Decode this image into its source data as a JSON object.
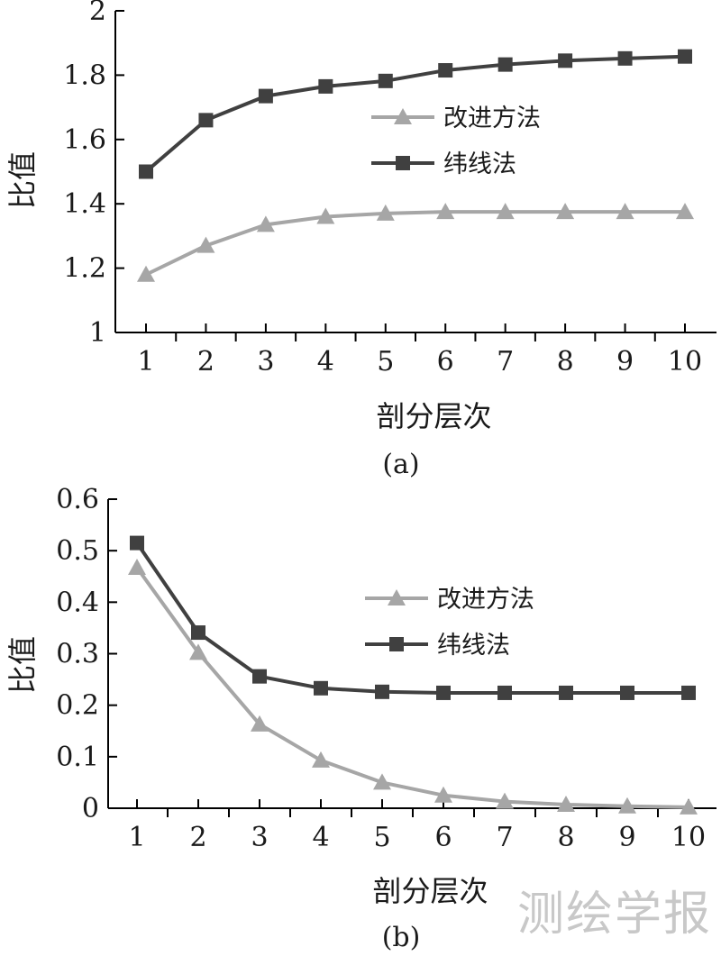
{
  "chart_data": [
    {
      "type": "line",
      "panel_label": "(a)",
      "xlabel": "剖分层次",
      "ylabel": "比值",
      "x": [
        1,
        2,
        3,
        4,
        5,
        6,
        7,
        8,
        9,
        10
      ],
      "ylim": [
        1,
        2
      ],
      "yticks": [
        1,
        1.2,
        1.4,
        1.6,
        1.8,
        2
      ],
      "ytick_labels": [
        "1",
        "1.2",
        "1.4",
        "1.6",
        "1.8",
        "2"
      ],
      "xtick_labels": [
        "1",
        "2",
        "3",
        "4",
        "5",
        "6",
        "7",
        "8",
        "9",
        "10"
      ],
      "grid": false,
      "legend_position": "right",
      "series": [
        {
          "name": "改进方法",
          "marker": "triangle",
          "color": "#a6a6a6",
          "values": [
            1.18,
            1.27,
            1.335,
            1.36,
            1.37,
            1.375,
            1.375,
            1.375,
            1.375,
            1.375
          ]
        },
        {
          "name": "纬线法",
          "marker": "square",
          "color": "#404040",
          "values": [
            1.5,
            1.66,
            1.735,
            1.765,
            1.782,
            1.815,
            1.833,
            1.845,
            1.852,
            1.858
          ]
        }
      ]
    },
    {
      "type": "line",
      "panel_label": "(b)",
      "xlabel": "剖分层次",
      "ylabel": "比值",
      "x": [
        1,
        2,
        3,
        4,
        5,
        6,
        7,
        8,
        9,
        10
      ],
      "ylim": [
        0,
        0.6
      ],
      "yticks": [
        0,
        0.1,
        0.2,
        0.3,
        0.4,
        0.5,
        0.6
      ],
      "ytick_labels": [
        "0",
        "0.1",
        "0.2",
        "0.3",
        "0.4",
        "0.5",
        "0.6"
      ],
      "xtick_labels": [
        "1",
        "2",
        "3",
        "4",
        "5",
        "6",
        "7",
        "8",
        "9",
        "10"
      ],
      "grid": false,
      "legend_position": "right",
      "series": [
        {
          "name": "改进方法",
          "marker": "triangle",
          "color": "#a6a6a6",
          "values": [
            0.467,
            0.302,
            0.163,
            0.093,
            0.05,
            0.025,
            0.013,
            0.007,
            0.004,
            0.002
          ]
        },
        {
          "name": "纬线法",
          "marker": "square",
          "color": "#404040",
          "values": [
            0.515,
            0.341,
            0.256,
            0.233,
            0.226,
            0.224,
            0.224,
            0.224,
            0.224,
            0.224
          ]
        }
      ]
    }
  ],
  "watermark": "测绘学报"
}
